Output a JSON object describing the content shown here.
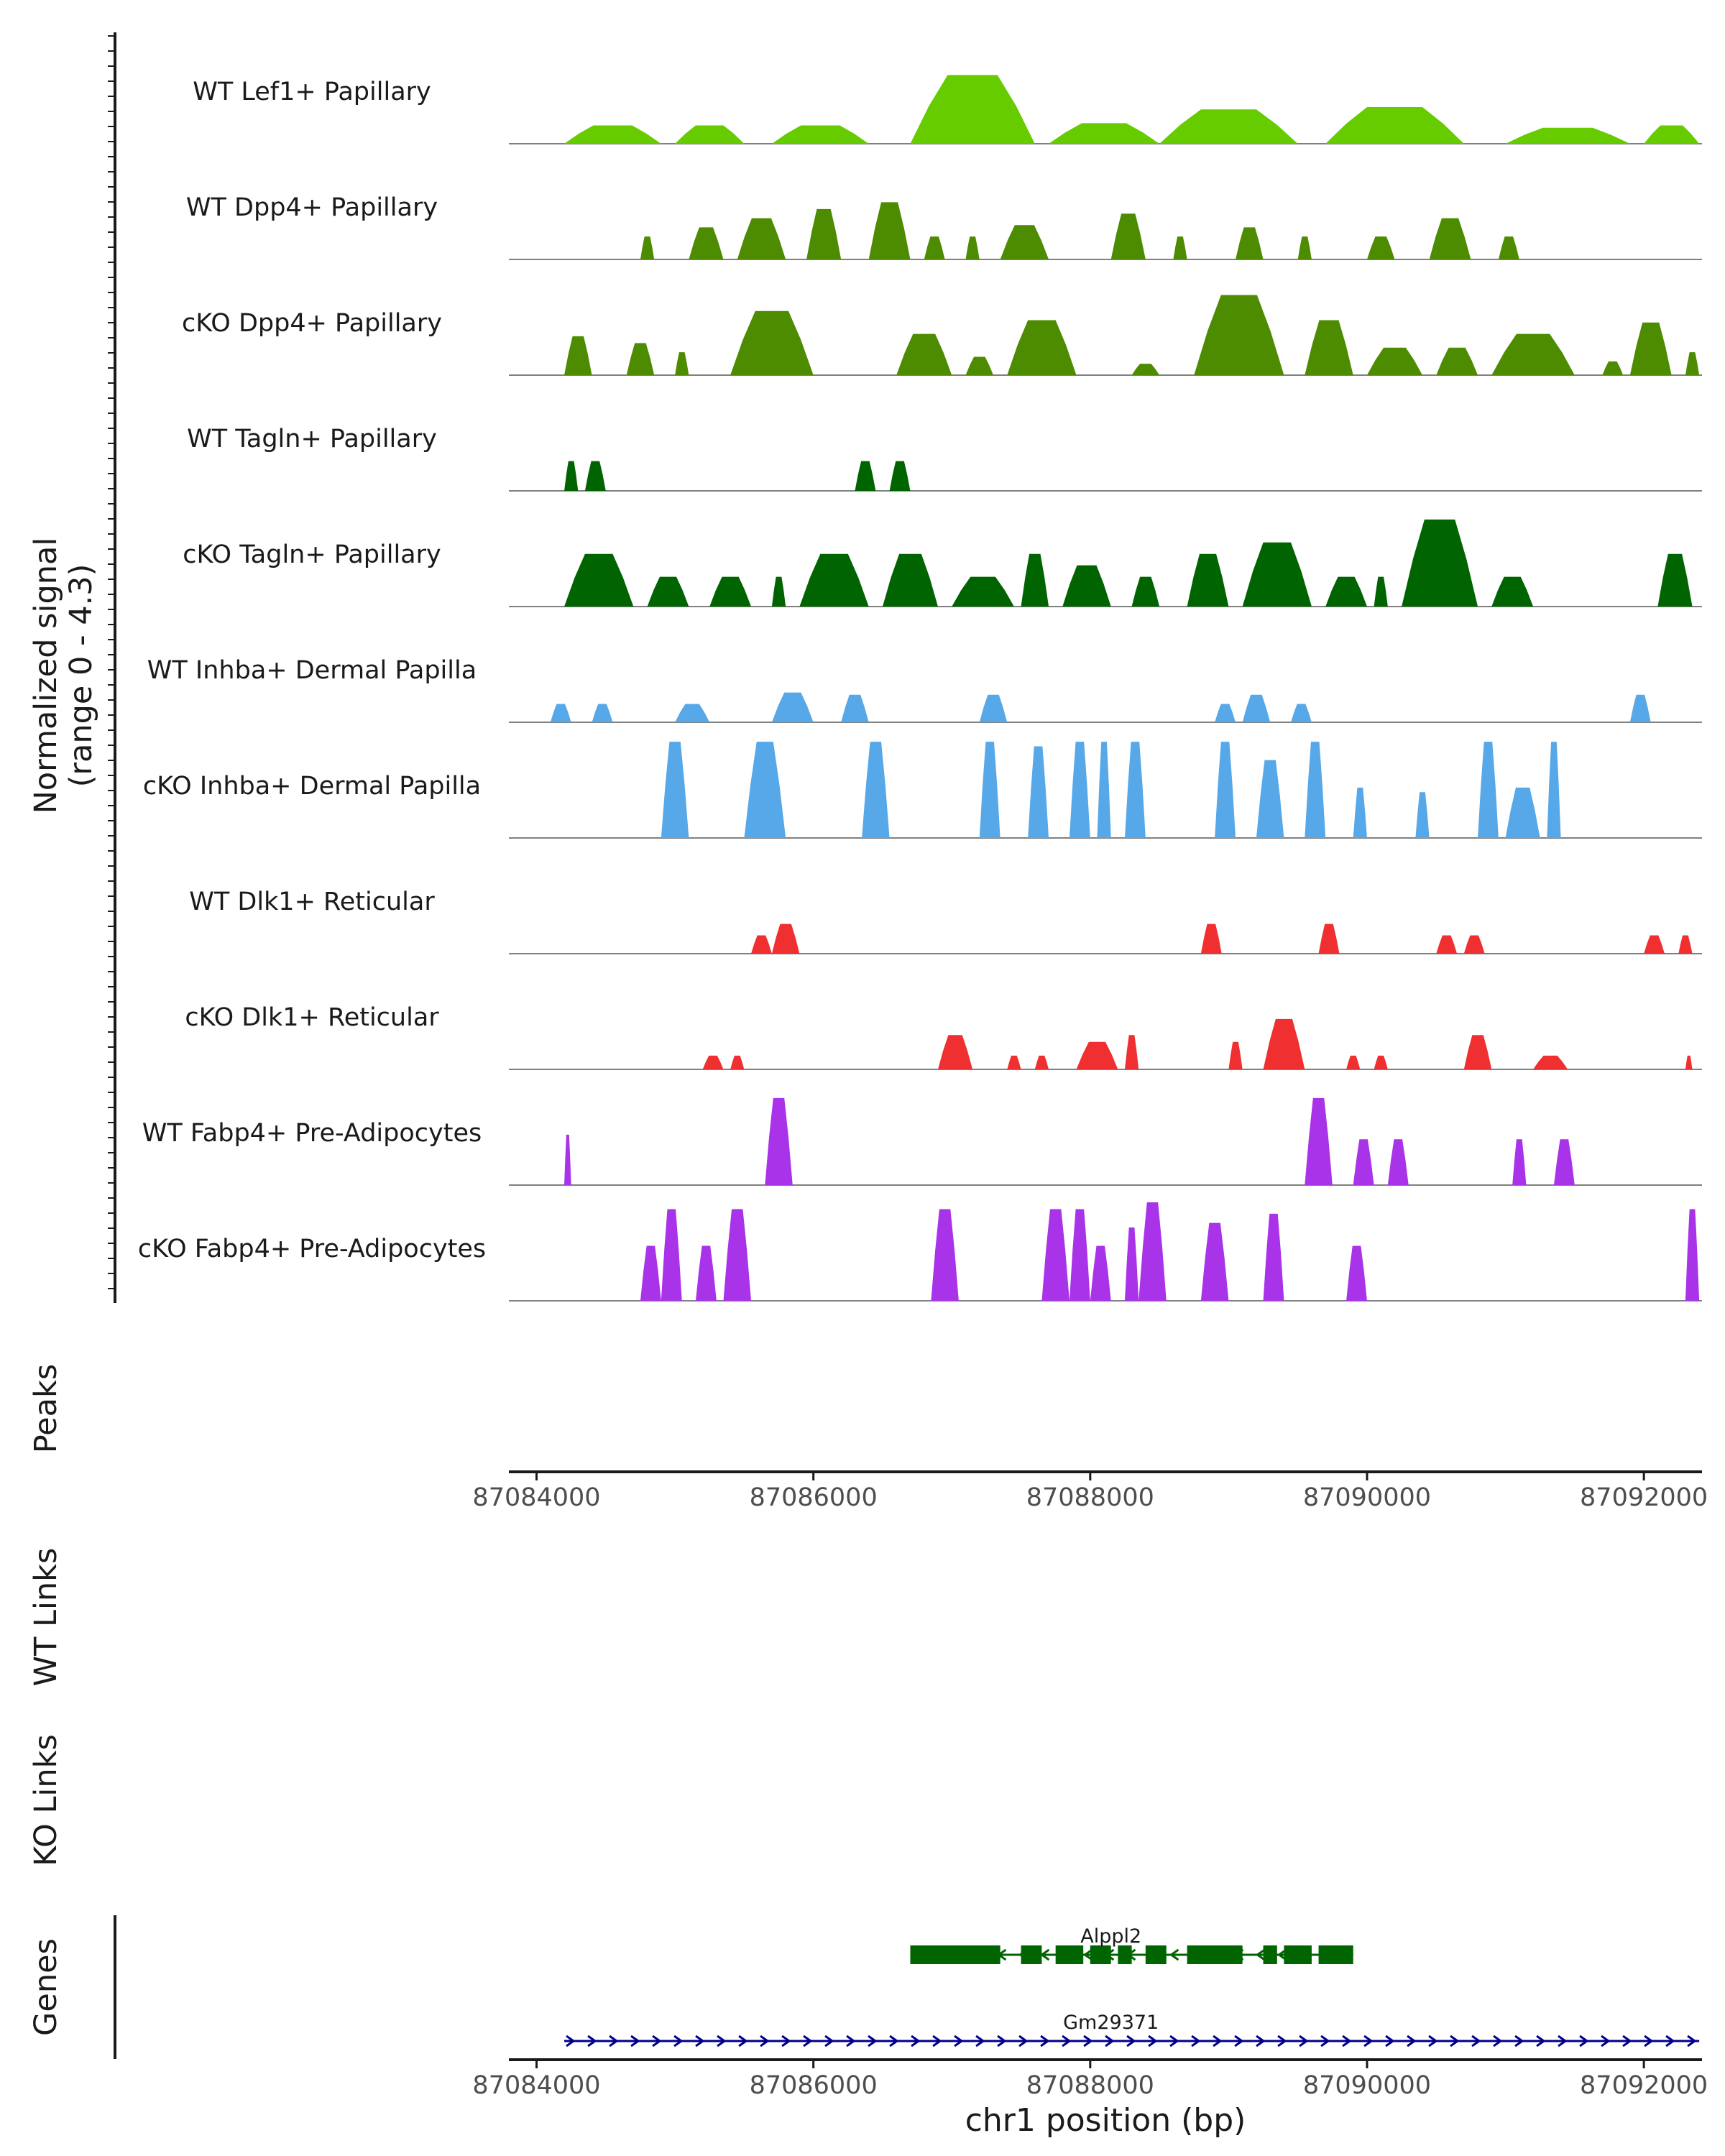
{
  "chart_data": {
    "type": "area",
    "chromosome": "chr1",
    "region": [
      87084000,
      87092300
    ],
    "y_axis_label": [
      "Normalized signal",
      "(range 0 - 4.3)"
    ],
    "signal_range": [
      0,
      4.3
    ],
    "tracks": [
      {
        "name": "WT Lef1+ Papillary",
        "color": "#66cc00",
        "peaks": [
          [
            87084200,
            87084900,
            0.8
          ],
          [
            87085000,
            87085500,
            0.8
          ],
          [
            87085700,
            87086400,
            0.8
          ],
          [
            87086700,
            87087600,
            3.0
          ],
          [
            87087700,
            87088500,
            0.9
          ],
          [
            87088500,
            87089500,
            1.5
          ],
          [
            87089700,
            87090700,
            1.6
          ],
          [
            87091000,
            87091900,
            0.7
          ],
          [
            87092000,
            87092400,
            0.8
          ]
        ]
      },
      {
        "name": "WT Dpp4+ Papillary",
        "color": "#4d8c00",
        "peaks": [
          [
            87084750,
            87084850,
            1.0
          ],
          [
            87085100,
            87085350,
            1.4
          ],
          [
            87085450,
            87085800,
            1.8
          ],
          [
            87085950,
            87086200,
            2.2
          ],
          [
            87086400,
            87086700,
            2.5
          ],
          [
            87086800,
            87086950,
            1.0
          ],
          [
            87087100,
            87087200,
            1.0
          ],
          [
            87087350,
            87087700,
            1.5
          ],
          [
            87088150,
            87088400,
            2.0
          ],
          [
            87088600,
            87088700,
            1.0
          ],
          [
            87089050,
            87089250,
            1.4
          ],
          [
            87089500,
            87089600,
            1.0
          ],
          [
            87090000,
            87090200,
            1.0
          ],
          [
            87090450,
            87090750,
            1.8
          ],
          [
            87090950,
            87091100,
            1.0
          ]
        ]
      },
      {
        "name": "cKO Dpp4+ Papillary",
        "color": "#4d8c00",
        "peaks": [
          [
            87084200,
            87084400,
            1.7
          ],
          [
            87084650,
            87084850,
            1.4
          ],
          [
            87085000,
            87085100,
            1.0
          ],
          [
            87085400,
            87086000,
            2.8
          ],
          [
            87086600,
            87087000,
            1.8
          ],
          [
            87087100,
            87087300,
            0.8
          ],
          [
            87087400,
            87087900,
            2.4
          ],
          [
            87088300,
            87088500,
            0.5
          ],
          [
            87088750,
            87089400,
            3.5
          ],
          [
            87089550,
            87089900,
            2.4
          ],
          [
            87090000,
            87090400,
            1.2
          ],
          [
            87090500,
            87090800,
            1.2
          ],
          [
            87090900,
            87091500,
            1.8
          ],
          [
            87091700,
            87091850,
            0.6
          ],
          [
            87091900,
            87092200,
            2.3
          ],
          [
            87092300,
            87092400,
            1.0
          ]
        ]
      },
      {
        "name": "WT Tagln+ Papillary",
        "color": "#006400",
        "peaks": [
          [
            87084200,
            87084300,
            1.3
          ],
          [
            87084350,
            87084500,
            1.3
          ],
          [
            87086300,
            87086450,
            1.3
          ],
          [
            87086550,
            87086700,
            1.3
          ]
        ]
      },
      {
        "name": "cKO Tagln+ Papillary",
        "color": "#006400",
        "peaks": [
          [
            87084200,
            87084700,
            2.3
          ],
          [
            87084800,
            87085100,
            1.3
          ],
          [
            87085250,
            87085550,
            1.3
          ],
          [
            87085700,
            87085800,
            1.3
          ],
          [
            87085900,
            87086400,
            2.3
          ],
          [
            87086500,
            87086900,
            2.3
          ],
          [
            87087000,
            87087450,
            1.3
          ],
          [
            87087500,
            87087700,
            2.3
          ],
          [
            87087800,
            87088150,
            1.8
          ],
          [
            87088300,
            87088500,
            1.3
          ],
          [
            87088700,
            87089000,
            2.3
          ],
          [
            87089100,
            87089600,
            2.8
          ],
          [
            87089700,
            87090000,
            1.3
          ],
          [
            87090050,
            87090150,
            1.3
          ],
          [
            87090250,
            87090800,
            3.8
          ],
          [
            87090900,
            87091200,
            1.3
          ],
          [
            87092100,
            87092350,
            2.3
          ]
        ]
      },
      {
        "name": "WT Inhba+ Dermal Papilla",
        "color": "#56a8e8",
        "peaks": [
          [
            87084100,
            87084250,
            0.8
          ],
          [
            87084400,
            87084550,
            0.8
          ],
          [
            87085000,
            87085250,
            0.8
          ],
          [
            87085700,
            87086000,
            1.3
          ],
          [
            87086200,
            87086400,
            1.2
          ],
          [
            87087200,
            87087400,
            1.2
          ],
          [
            87088900,
            87089050,
            0.8
          ],
          [
            87089100,
            87089300,
            1.2
          ],
          [
            87089450,
            87089600,
            0.8
          ],
          [
            87091900,
            87092050,
            1.2
          ]
        ]
      },
      {
        "name": "cKO Inhba+ Dermal Papilla",
        "color": "#56a8e8",
        "peaks": [
          [
            87084900,
            87085100,
            4.2
          ],
          [
            87085500,
            87085800,
            4.2
          ],
          [
            87086350,
            87086550,
            4.2
          ],
          [
            87087200,
            87087350,
            4.2
          ],
          [
            87087550,
            87087700,
            4.0
          ],
          [
            87087850,
            87088000,
            4.2
          ],
          [
            87088050,
            87088150,
            4.2
          ],
          [
            87088250,
            87088400,
            4.2
          ],
          [
            87088900,
            87089050,
            4.2
          ],
          [
            87089200,
            87089400,
            3.4
          ],
          [
            87089550,
            87089700,
            4.2
          ],
          [
            87089900,
            87090000,
            2.2
          ],
          [
            87090350,
            87090450,
            2.0
          ],
          [
            87090800,
            87090950,
            4.2
          ],
          [
            87091000,
            87091250,
            2.2
          ],
          [
            87091300,
            87091400,
            4.2
          ]
        ]
      },
      {
        "name": "WT Dlk1+ Reticular",
        "color": "#f03030",
        "peaks": [
          [
            87085550,
            87085700,
            0.8
          ],
          [
            87085700,
            87085900,
            1.3
          ],
          [
            87088800,
            87088950,
            1.3
          ],
          [
            87089650,
            87089800,
            1.3
          ],
          [
            87090500,
            87090650,
            0.8
          ],
          [
            87090700,
            87090850,
            0.8
          ],
          [
            87092000,
            87092150,
            0.8
          ],
          [
            87092250,
            87092350,
            0.8
          ]
        ]
      },
      {
        "name": "cKO Dlk1+ Reticular",
        "color": "#f03030",
        "peaks": [
          [
            87085200,
            87085350,
            0.6
          ],
          [
            87085400,
            87085500,
            0.6
          ],
          [
            87086900,
            87087150,
            1.5
          ],
          [
            87087400,
            87087500,
            0.6
          ],
          [
            87087600,
            87087700,
            0.6
          ],
          [
            87087900,
            87088200,
            1.2
          ],
          [
            87088250,
            87088350,
            1.5
          ],
          [
            87089000,
            87089100,
            1.2
          ],
          [
            87089250,
            87089550,
            2.2
          ],
          [
            87089850,
            87089950,
            0.6
          ],
          [
            87090050,
            87090150,
            0.6
          ],
          [
            87090700,
            87090900,
            1.5
          ],
          [
            87091200,
            87091450,
            0.6
          ],
          [
            87092300,
            87092350,
            0.6
          ]
        ]
      },
      {
        "name": "WT Fabp4+ Pre-Adipocytes",
        "color": "#a833e8",
        "peaks": [
          [
            87084200,
            87084250,
            2.2
          ],
          [
            87085650,
            87085850,
            3.8
          ],
          [
            87089550,
            87089750,
            3.8
          ],
          [
            87089900,
            87090050,
            2.0
          ],
          [
            87090150,
            87090300,
            2.0
          ],
          [
            87091050,
            87091150,
            2.0
          ],
          [
            87091350,
            87091500,
            2.0
          ]
        ]
      },
      {
        "name": "cKO Fabp4+ Pre-Adipocytes",
        "color": "#a833e8",
        "peaks": [
          [
            87084750,
            87084900,
            2.4
          ],
          [
            87084900,
            87085050,
            4.0
          ],
          [
            87085150,
            87085300,
            2.4
          ],
          [
            87085350,
            87085550,
            4.0
          ],
          [
            87086850,
            87087050,
            4.0
          ],
          [
            87087650,
            87087850,
            4.0
          ],
          [
            87087850,
            87088000,
            4.0
          ],
          [
            87088000,
            87088150,
            2.4
          ],
          [
            87088250,
            87088350,
            3.2
          ],
          [
            87088350,
            87088550,
            4.3
          ],
          [
            87088800,
            87089000,
            3.4
          ],
          [
            87089250,
            87089400,
            3.8
          ],
          [
            87089850,
            87090000,
            2.4
          ],
          [
            87092300,
            87092400,
            4.0
          ]
        ]
      }
    ],
    "panels": {
      "peaks": "Peaks",
      "wt_links": "WT Links",
      "ko_links": "KO Links",
      "genes": "Genes"
    },
    "x_ticks": [
      87084000,
      87086000,
      87088000,
      87090000,
      87092000
    ],
    "x_tick_labels": [
      "87084000",
      "87086000",
      "87088000",
      "87090000",
      "87092000"
    ],
    "xlabel": "chr1 position (bp)",
    "genes": [
      {
        "name": "Alppl2",
        "start": 87086700,
        "end": 87089900,
        "strand": "-",
        "color": "#006400",
        "exons": [
          [
            87086700,
            87087350
          ],
          [
            87087500,
            87087650
          ],
          [
            87087750,
            87087950
          ],
          [
            87088000,
            87088150
          ],
          [
            87088200,
            87088300
          ],
          [
            87088400,
            87088550
          ],
          [
            87088700,
            87089100
          ],
          [
            87089250,
            87089350
          ],
          [
            87089400,
            87089600
          ],
          [
            87089650,
            87089900
          ]
        ]
      },
      {
        "name": "Gm29371",
        "start": 87084200,
        "end": 87092400,
        "strand": "+",
        "color": "#00008b",
        "exons": []
      }
    ]
  }
}
